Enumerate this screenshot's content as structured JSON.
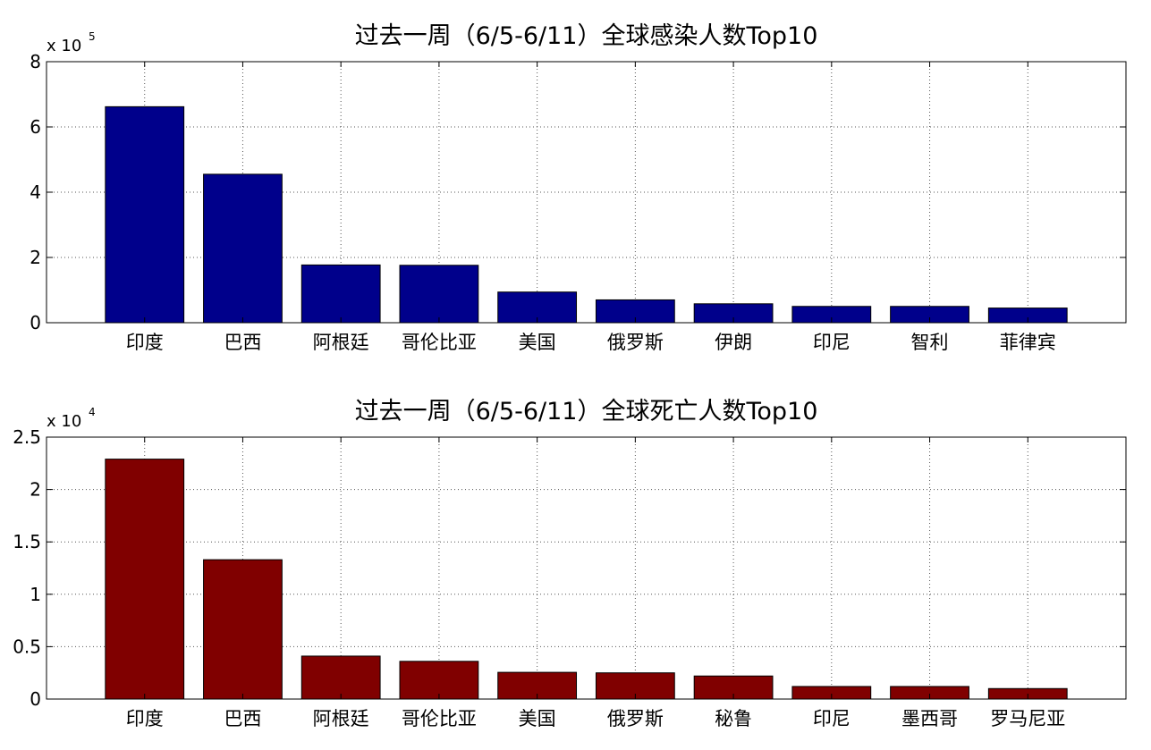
{
  "chart_data": [
    {
      "type": "bar",
      "title": "过去一周（6/5-6/11）全球感染人数Top10",
      "categories": [
        "印度",
        "巴西",
        "阿根廷",
        "哥伦比亚",
        "美国",
        "俄罗斯",
        "伊朗",
        "印尼",
        "智利",
        "菲律宾"
      ],
      "values": [
        662000,
        455000,
        177000,
        176000,
        94000,
        70000,
        58000,
        50000,
        50000,
        45000
      ],
      "ylim": [
        0,
        800000
      ],
      "yticks": [
        0,
        200000,
        400000,
        600000,
        800000
      ],
      "ytick_labels": [
        "0",
        "2",
        "4",
        "6",
        "8"
      ],
      "exponent_base": "x 10",
      "exponent_power": "5",
      "grid": true,
      "color": "#00008B"
    },
    {
      "type": "bar",
      "title": "过去一周（6/5-6/11）全球死亡人数Top10",
      "categories": [
        "印度",
        "巴西",
        "阿根廷",
        "哥伦比亚",
        "美国",
        "俄罗斯",
        "秘鲁",
        "印尼",
        "墨西哥",
        "罗马尼亚"
      ],
      "values": [
        22900,
        13300,
        4100,
        3600,
        2550,
        2500,
        2200,
        1200,
        1200,
        1000
      ],
      "ylim": [
        0,
        25000
      ],
      "yticks": [
        0,
        5000,
        10000,
        15000,
        20000,
        25000
      ],
      "ytick_labels": [
        "0",
        "0.5",
        "1",
        "1.5",
        "2",
        "2.5"
      ],
      "exponent_base": "x 10",
      "exponent_power": "4",
      "grid": true,
      "color": "#800000"
    }
  ]
}
